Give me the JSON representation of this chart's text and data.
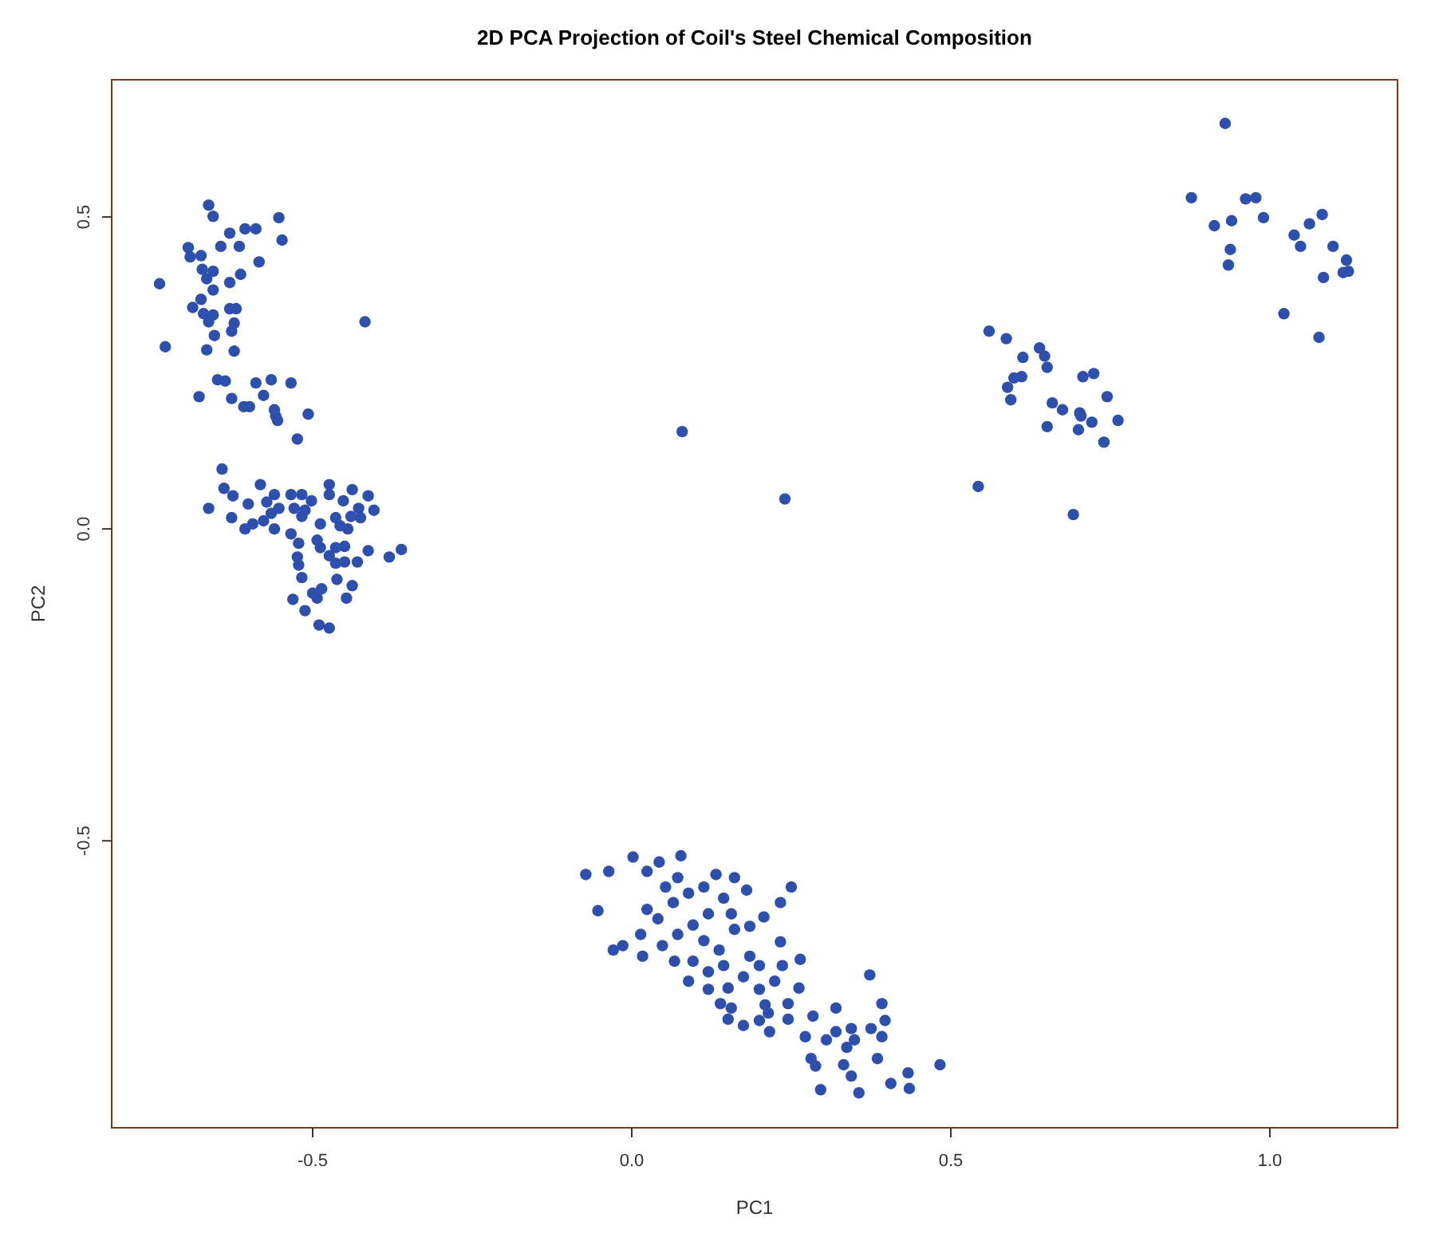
{
  "chart_data": {
    "type": "scatter",
    "title": "2D PCA Projection of Coil's Steel Chemical Composition",
    "xlabel": "PC1",
    "ylabel": "PC2",
    "marker": "circle",
    "grid": false,
    "xlim": [
      -0.815,
      1.2
    ],
    "ylim": [
      -0.96,
      0.72
    ],
    "xticks": [
      -0.5,
      {
        "value": 0,
        "label": "0.0"
      },
      0.5,
      {
        "value": 1,
        "label": "1.0"
      }
    ],
    "yticks": [
      -0.5,
      {
        "value": 0,
        "label": "0.0"
      },
      0.5
    ],
    "series": [
      {
        "color": "#2d4fae",
        "x": [
          -0.663,
          -0.656,
          -0.553,
          -0.63,
          -0.606,
          -0.589,
          -0.548,
          -0.695,
          -0.644,
          -0.615,
          -0.692,
          -0.675,
          -0.584,
          -0.673,
          -0.656,
          -0.666,
          -0.613,
          -0.63,
          -0.74,
          -0.656,
          -0.675,
          -0.688,
          -0.63,
          -0.62,
          -0.671,
          -0.656,
          -0.663,
          -0.623,
          -0.418,
          -0.627,
          -0.654,
          -0.731,
          -0.666,
          -0.623,
          -0.649,
          -0.637,
          -0.589,
          -0.565,
          -0.534,
          -0.678,
          -0.627,
          -0.577,
          -0.608,
          -0.599,
          -0.56,
          -0.558,
          -0.555,
          -0.507,
          -0.524,
          -0.642,
          -0.639,
          -0.625,
          -0.582,
          -0.663,
          -0.627,
          -0.601,
          -0.572,
          -0.56,
          -0.565,
          -0.553,
          -0.577,
          -0.594,
          -0.606,
          -0.56,
          -0.534,
          -0.517,
          -0.502,
          -0.529,
          -0.517,
          -0.512,
          -0.474,
          -0.474,
          -0.452,
          -0.438,
          -0.413,
          -0.428,
          -0.404,
          -0.488,
          -0.464,
          -0.44,
          -0.425,
          -0.457,
          -0.445,
          -0.534,
          -0.522,
          -0.493,
          -0.488,
          -0.464,
          -0.474,
          -0.45,
          -0.524,
          -0.522,
          -0.464,
          -0.45,
          -0.43,
          -0.413,
          -0.38,
          -0.361,
          -0.517,
          -0.462,
          -0.438,
          -0.486,
          -0.5,
          -0.493,
          -0.531,
          -0.447,
          -0.512,
          -0.49,
          -0.474,
          -0.072,
          -0.036,
          0.002,
          0.024,
          0.043,
          0.077,
          -0.053,
          -0.029,
          -0.014,
          0.017,
          0.014,
          0.024,
          0.041,
          0.053,
          0.072,
          0.065,
          0.089,
          0.113,
          0.132,
          0.161,
          0.18,
          0.25,
          0.233,
          0.207,
          0.144,
          0.156,
          0.12,
          0.096,
          0.072,
          0.113,
          0.137,
          0.161,
          0.185,
          0.048,
          0.067,
          0.096,
          0.12,
          0.144,
          0.185,
          0.2,
          0.233,
          0.264,
          0.236,
          0.089,
          0.12,
          0.151,
          0.175,
          0.2,
          0.224,
          0.262,
          0.139,
          0.156,
          0.209,
          0.245,
          0.151,
          0.175,
          0.2,
          0.216,
          0.245,
          0.214,
          0.32,
          0.284,
          0.373,
          0.392,
          0.272,
          0.305,
          0.32,
          0.344,
          0.375,
          0.397,
          0.392,
          0.349,
          0.337,
          0.281,
          0.288,
          0.332,
          0.385,
          0.344,
          0.296,
          0.356,
          0.406,
          0.433,
          0.435,
          0.483,
          0.56,
          0.587,
          0.613,
          0.639,
          0.647,
          0.651,
          0.599,
          0.611,
          0.589,
          0.594,
          0.707,
          0.724,
          0.745,
          0.659,
          0.675,
          0.702,
          0.704,
          0.762,
          0.721,
          0.651,
          0.7,
          0.74,
          0.543,
          0.692,
          0.93,
          0.877,
          0.962,
          0.978,
          0.913,
          0.94,
          0.99,
          0.938,
          0.935,
          1.082,
          1.062,
          1.038,
          1.048,
          1.099,
          1.12,
          1.115,
          1.123,
          1.084,
          1.022,
          1.077,
          0.079,
          0.24
        ],
        "values": [
          0.519,
          0.501,
          0.499,
          0.474,
          0.481,
          0.481,
          0.463,
          0.451,
          0.453,
          0.453,
          0.436,
          0.438,
          0.428,
          0.416,
          0.413,
          0.401,
          0.408,
          0.395,
          0.393,
          0.383,
          0.368,
          0.355,
          0.353,
          0.353,
          0.345,
          0.343,
          0.332,
          0.33,
          0.332,
          0.317,
          0.31,
          0.292,
          0.287,
          0.285,
          0.239,
          0.237,
          0.234,
          0.239,
          0.234,
          0.212,
          0.209,
          0.214,
          0.196,
          0.196,
          0.191,
          0.181,
          0.174,
          0.184,
          0.144,
          0.096,
          0.065,
          0.053,
          0.071,
          0.033,
          0.018,
          0.04,
          0.043,
          0.055,
          0.025,
          0.033,
          0.013,
          0.008,
          0.0,
          0.0,
          0.055,
          0.055,
          0.045,
          0.033,
          0.02,
          0.03,
          0.071,
          0.055,
          0.045,
          0.063,
          0.053,
          0.033,
          0.03,
          0.008,
          0.018,
          0.02,
          0.018,
          0.005,
          0.0,
          -0.008,
          -0.023,
          -0.018,
          -0.03,
          -0.03,
          -0.043,
          -0.028,
          -0.045,
          -0.058,
          -0.055,
          -0.053,
          -0.053,
          -0.035,
          -0.045,
          -0.033,
          -0.078,
          -0.081,
          -0.091,
          -0.096,
          -0.103,
          -0.111,
          -0.113,
          -0.111,
          -0.131,
          -0.154,
          -0.159,
          -0.554,
          -0.549,
          -0.526,
          -0.549,
          -0.534,
          -0.524,
          -0.612,
          -0.675,
          -0.668,
          -0.685,
          -0.65,
          -0.61,
          -0.625,
          -0.574,
          -0.559,
          -0.599,
          -0.584,
          -0.574,
          -0.554,
          -0.559,
          -0.579,
          -0.574,
          -0.599,
          -0.622,
          -0.592,
          -0.617,
          -0.617,
          -0.635,
          -0.65,
          -0.66,
          -0.675,
          -0.642,
          -0.637,
          -0.668,
          -0.693,
          -0.693,
          -0.71,
          -0.7,
          -0.685,
          -0.7,
          -0.662,
          -0.69,
          -0.7,
          -0.725,
          -0.738,
          -0.736,
          -0.718,
          -0.738,
          -0.725,
          -0.736,
          -0.761,
          -0.768,
          -0.763,
          -0.761,
          -0.786,
          -0.796,
          -0.788,
          -0.806,
          -0.786,
          -0.776,
          -0.768,
          -0.781,
          -0.715,
          -0.761,
          -0.814,
          -0.819,
          -0.806,
          -0.801,
          -0.801,
          -0.788,
          -0.814,
          -0.819,
          -0.831,
          -0.849,
          -0.861,
          -0.859,
          -0.849,
          -0.877,
          -0.899,
          -0.904,
          -0.889,
          -0.872,
          -0.897,
          -0.859,
          0.317,
          0.305,
          0.275,
          0.29,
          0.277,
          0.259,
          0.242,
          0.244,
          0.227,
          0.207,
          0.244,
          0.249,
          0.212,
          0.202,
          0.191,
          0.186,
          0.181,
          0.174,
          0.171,
          0.164,
          0.159,
          0.139,
          0.068,
          0.023,
          0.65,
          0.531,
          0.529,
          0.531,
          0.486,
          0.494,
          0.499,
          0.448,
          0.423,
          0.504,
          0.489,
          0.471,
          0.453,
          0.453,
          0.431,
          0.411,
          0.413,
          0.403,
          0.345,
          0.307,
          0.156,
          0.048
        ]
      }
    ]
  }
}
